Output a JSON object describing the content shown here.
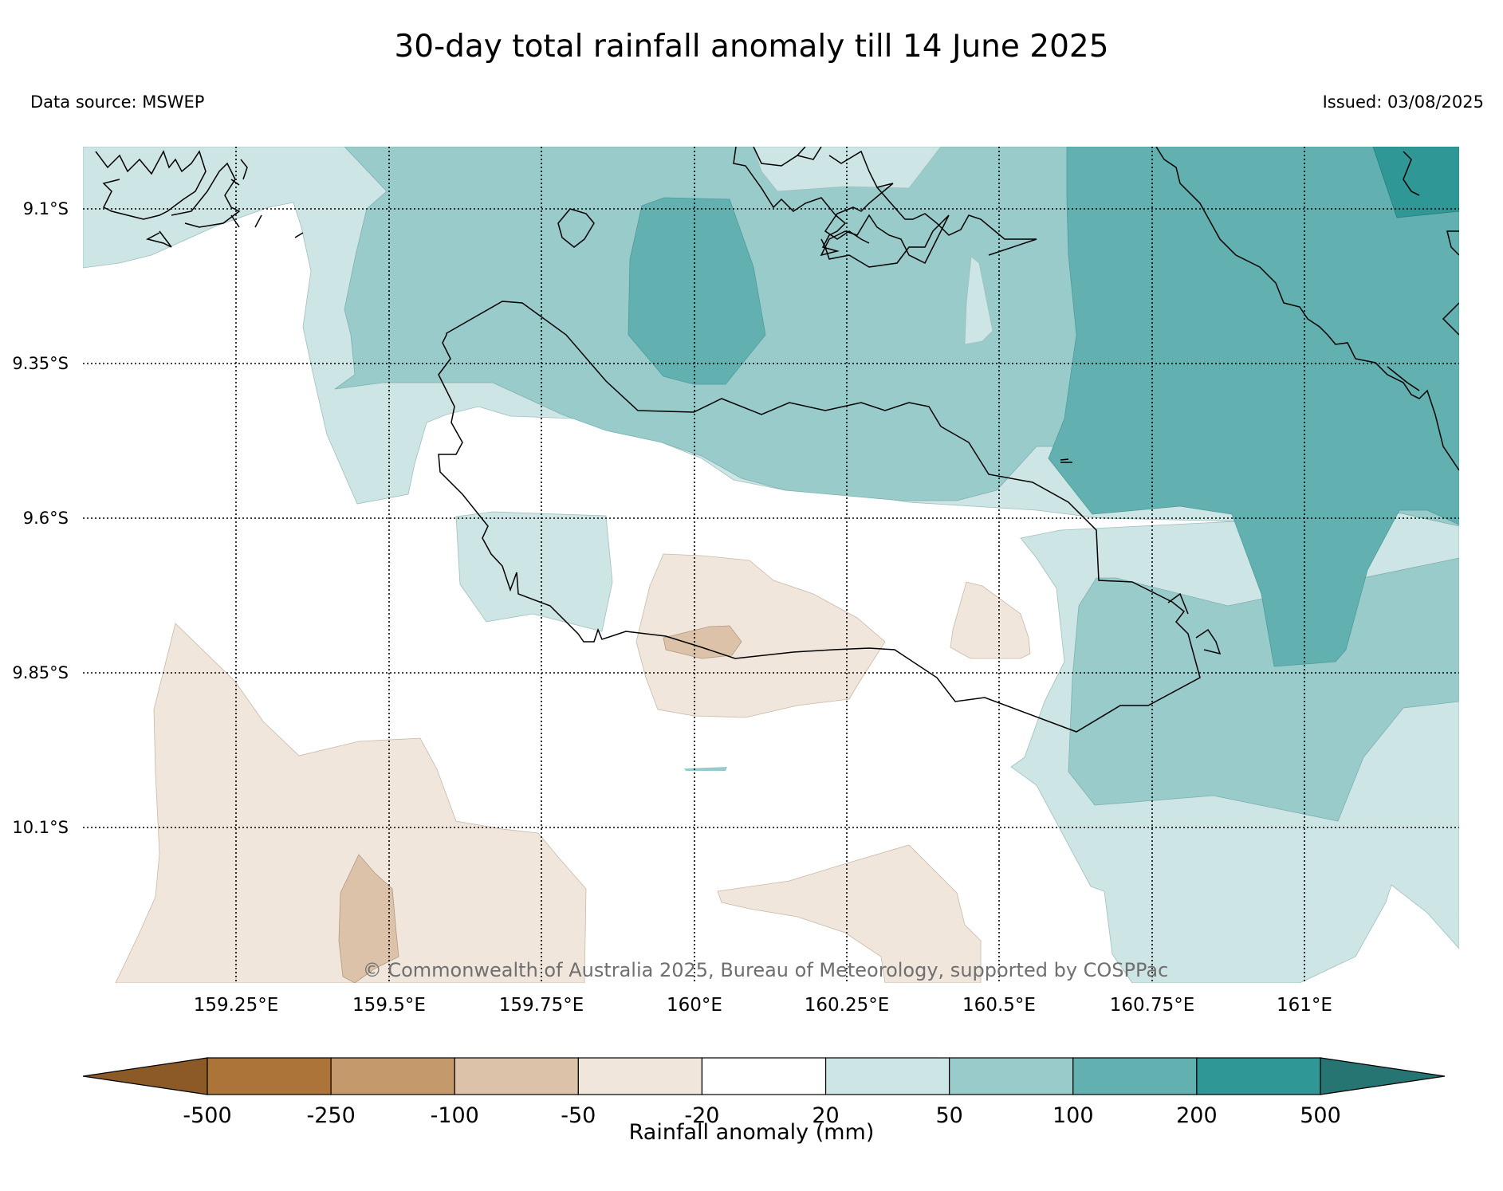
{
  "header": {
    "title": "30-day total rainfall anomaly till 14 June 2025",
    "data_source": "Data source: MSWEP",
    "issued": "Issued: 03/08/2025"
  },
  "map": {
    "lat_labels": [
      "9.1°S",
      "9.35°S",
      "9.6°S",
      "9.85°S",
      "10.1°S"
    ],
    "lon_labels": [
      "159.25°E",
      "159.5°E",
      "159.75°E",
      "160°E",
      "160.25°E",
      "160.5°E",
      "160.75°E",
      "161°E"
    ],
    "copyright": "© Commonwealth of Australia 2025, Bureau of Meteorology, supported by COSPPac"
  },
  "colorbar": {
    "label": "Rainfall anomaly (mm)",
    "ticks": [
      "-500",
      "-250",
      "-100",
      "-50",
      "-20",
      "20",
      "50",
      "100",
      "200",
      "500"
    ],
    "colors": [
      "#8c5a26",
      "#ad7439",
      "#c49a6c",
      "#dbc2a8",
      "#f0e6dc",
      "#ffffff",
      "#cde5e4",
      "#99cbcb",
      "#62b0b0",
      "#2f9896",
      "#267573"
    ]
  }
}
